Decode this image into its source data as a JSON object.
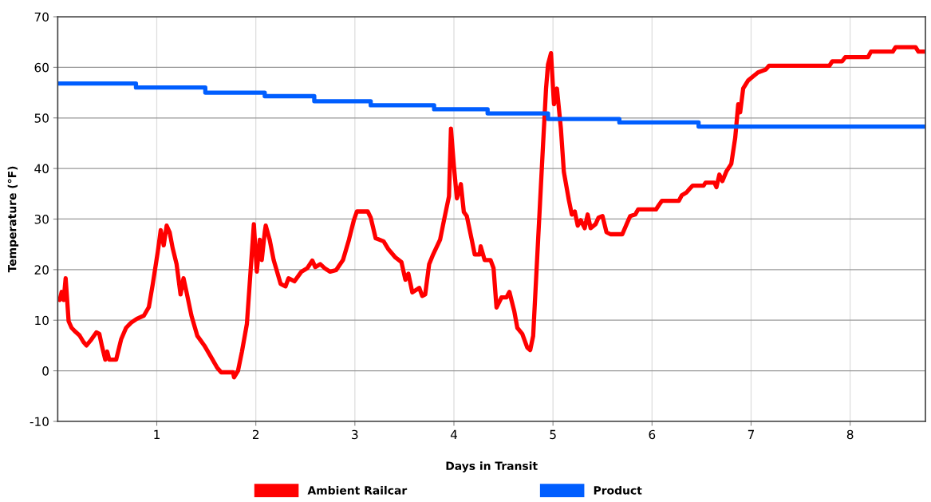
{
  "chart_data": {
    "type": "line",
    "xlabel": "Days in Transit",
    "ylabel": "Temperature (°F)",
    "xlim": [
      0,
      8.76
    ],
    "xticks": [
      1,
      2,
      3,
      4,
      5,
      6,
      7,
      8
    ],
    "ylim": [
      -10,
      70
    ],
    "yticks": [
      -10,
      0,
      10,
      20,
      30,
      40,
      50,
      60,
      70
    ],
    "grid": true,
    "legend": "bottom",
    "marker": "none",
    "line_style": "solid",
    "series": [
      {
        "name": "Ambient Railcar",
        "color": "#ff0000",
        "x": [
          0.02,
          0.04,
          0.06,
          0.08,
          0.11,
          0.14,
          0.18,
          0.22,
          0.26,
          0.29,
          0.34,
          0.39,
          0.42,
          0.45,
          0.48,
          0.5,
          0.52,
          0.59,
          0.64,
          0.69,
          0.74,
          0.8,
          0.87,
          0.92,
          0.96,
          1.01,
          1.04,
          1.07,
          1.1,
          1.13,
          1.16,
          1.2,
          1.24,
          1.27,
          1.3,
          1.35,
          1.41,
          1.48,
          1.54,
          1.61,
          1.65,
          1.77,
          1.78,
          1.82,
          1.86,
          1.91,
          1.98,
          2.01,
          2.04,
          2.06,
          2.09,
          2.1,
          2.14,
          2.18,
          2.25,
          2.3,
          2.33,
          2.39,
          2.46,
          2.52,
          2.57,
          2.6,
          2.65,
          2.7,
          2.75,
          2.81,
          2.88,
          2.94,
          2.99,
          3.02,
          3.13,
          3.16,
          3.21,
          3.29,
          3.34,
          3.41,
          3.47,
          3.51,
          3.54,
          3.58,
          3.65,
          3.68,
          3.71,
          3.75,
          3.79,
          3.86,
          3.9,
          3.95,
          3.97,
          4.0,
          4.03,
          4.07,
          4.1,
          4.13,
          4.18,
          4.21,
          4.26,
          4.27,
          4.31,
          4.37,
          4.4,
          4.43,
          4.48,
          4.53,
          4.56,
          4.61,
          4.64,
          4.69,
          4.74,
          4.77,
          4.8,
          4.85,
          4.9,
          4.93,
          4.95,
          4.98,
          5.01,
          5.04,
          5.08,
          5.11,
          5.16,
          5.19,
          5.22,
          5.25,
          5.28,
          5.32,
          5.35,
          5.38,
          5.43,
          5.46,
          5.5,
          5.54,
          5.58,
          5.7,
          5.75,
          5.78,
          5.83,
          5.86,
          6.04,
          6.07,
          6.1,
          6.27,
          6.3,
          6.35,
          6.38,
          6.41,
          6.52,
          6.54,
          6.63,
          6.65,
          6.68,
          6.71,
          6.75,
          6.8,
          6.84,
          6.87,
          6.89,
          6.92,
          6.97,
          7.02,
          7.07,
          7.15,
          7.18,
          7.79,
          7.82,
          7.92,
          7.95,
          8.18,
          8.21,
          8.43,
          8.46,
          8.66,
          8.69,
          8.76
        ],
        "values": [
          14,
          15.6,
          14,
          18.3,
          9.8,
          8.5,
          7.7,
          7,
          5.7,
          5,
          6.2,
          7.6,
          7.3,
          4.6,
          2.2,
          3.8,
          2.2,
          2.2,
          6.2,
          8.5,
          9.5,
          10.3,
          10.9,
          12.6,
          17.2,
          23.5,
          27.8,
          24.8,
          28.7,
          27.4,
          24.3,
          21.1,
          15.1,
          18.3,
          15.6,
          10.9,
          6.9,
          5,
          3,
          0.6,
          -0.3,
          -0.3,
          -1.3,
          0,
          3.8,
          9.3,
          29,
          19.6,
          25.9,
          21.9,
          27.4,
          28.7,
          25.9,
          21.9,
          17.2,
          16.7,
          18.3,
          17.7,
          19.6,
          20.3,
          21.8,
          20.5,
          21.1,
          20.2,
          19.6,
          19.9,
          21.9,
          25.9,
          29.8,
          31.5,
          31.5,
          30.3,
          26.2,
          25.6,
          24,
          22.4,
          21.5,
          18,
          19.2,
          15.5,
          16.4,
          14.8,
          15.1,
          21.1,
          23,
          25.9,
          29.8,
          34.5,
          47.9,
          40.4,
          34.1,
          36.9,
          31.4,
          30.6,
          25.9,
          23,
          23,
          24.6,
          21.9,
          21.9,
          20.3,
          12.5,
          14.5,
          14.5,
          15.6,
          11.7,
          8.5,
          7.3,
          4.6,
          4.1,
          6.9,
          25.9,
          44.8,
          55.8,
          60.6,
          62.8,
          52.7,
          55.8,
          47.9,
          39.3,
          33.8,
          30.9,
          31.5,
          28.7,
          29.8,
          28.2,
          30.9,
          28.2,
          29,
          30.3,
          30.6,
          27.4,
          27,
          27,
          29.3,
          30.6,
          30.9,
          31.9,
          31.9,
          32.8,
          33.6,
          33.6,
          34.7,
          35.3,
          36,
          36.6,
          36.6,
          37.2,
          37.2,
          36.3,
          38.8,
          37.5,
          39.4,
          40.9,
          46.1,
          52.7,
          51.1,
          55.8,
          57.4,
          58.2,
          59,
          59.6,
          60.3,
          60.3,
          61.2,
          61.2,
          62,
          62,
          63.1,
          63.1,
          64,
          64,
          63.1,
          63.1
        ]
      },
      {
        "name": "Product",
        "color": "#005eff",
        "type": "step",
        "x": [
          0,
          0.79,
          1.49,
          2.09,
          2.59,
          3.16,
          3.8,
          4.34,
          4.95,
          5.67,
          6.47,
          8.76
        ],
        "values": [
          56.8,
          56,
          55,
          54.3,
          53.3,
          52.5,
          51.7,
          50.9,
          49.8,
          49.1,
          48.3,
          48.3
        ]
      }
    ]
  }
}
